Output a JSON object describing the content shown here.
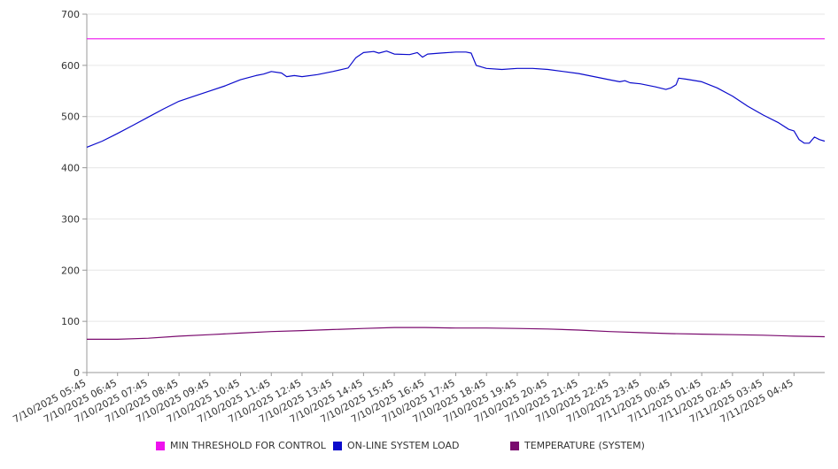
{
  "chart_data": {
    "type": "line",
    "title": "",
    "xlabel": "",
    "ylabel": "",
    "ylim": [
      0,
      700
    ],
    "yticks": [
      0,
      100,
      200,
      300,
      400,
      500,
      600,
      700
    ],
    "grid": true,
    "legend_position": "bottom",
    "x_tick_labels": [
      "7/10/2025 05:45",
      "7/10/2025 06:45",
      "7/10/2025 07:45",
      "7/10/2025 08:45",
      "7/10/2025 09:45",
      "7/10/2025 10:45",
      "7/10/2025 11:45",
      "7/10/2025 12:45",
      "7/10/2025 13:45",
      "7/10/2025 14:45",
      "7/10/2025 15:45",
      "7/10/2025 16:45",
      "7/10/2025 17:45",
      "7/10/2025 18:45",
      "7/10/2025 19:45",
      "7/10/2025 20:45",
      "7/10/2025 21:45",
      "7/10/2025 22:45",
      "7/10/2025 23:45",
      "7/11/2025 00:45",
      "7/11/2025 01:45",
      "7/11/2025 02:45",
      "7/11/2025 03:45",
      "7/11/2025 04:45"
    ],
    "x_range": [
      "7/10/2025 05:45",
      "7/11/2025 05:45"
    ],
    "series": [
      {
        "name": "MIN THRESHOLD FOR CONTROL",
        "color": "#ee11ee",
        "points": [
          [
            "7/10/2025 05:45",
            652
          ],
          [
            "7/11/2025 05:45",
            652
          ]
        ]
      },
      {
        "name": "ON-LINE SYSTEM LOAD",
        "color": "#0b0bcc",
        "points": [
          [
            "7/10/2025 05:45",
            440
          ],
          [
            "7/10/2025 06:15",
            452
          ],
          [
            "7/10/2025 06:45",
            467
          ],
          [
            "7/10/2025 07:15",
            483
          ],
          [
            "7/10/2025 07:45",
            499
          ],
          [
            "7/10/2025 08:15",
            515
          ],
          [
            "7/10/2025 08:45",
            530
          ],
          [
            "7/10/2025 09:15",
            540
          ],
          [
            "7/10/2025 09:45",
            550
          ],
          [
            "7/10/2025 10:15",
            560
          ],
          [
            "7/10/2025 10:45",
            572
          ],
          [
            "7/10/2025 11:15",
            580
          ],
          [
            "7/10/2025 11:30",
            583
          ],
          [
            "7/10/2025 11:45",
            588
          ],
          [
            "7/10/2025 12:05",
            585
          ],
          [
            "7/10/2025 12:15",
            578
          ],
          [
            "7/10/2025 12:30",
            580
          ],
          [
            "7/10/2025 12:45",
            578
          ],
          [
            "7/10/2025 13:15",
            582
          ],
          [
            "7/10/2025 13:45",
            588
          ],
          [
            "7/10/2025 14:15",
            595
          ],
          [
            "7/10/2025 14:30",
            615
          ],
          [
            "7/10/2025 14:45",
            625
          ],
          [
            "7/10/2025 15:05",
            627
          ],
          [
            "7/10/2025 15:15",
            624
          ],
          [
            "7/10/2025 15:30",
            628
          ],
          [
            "7/10/2025 15:45",
            622
          ],
          [
            "7/10/2025 16:15",
            621
          ],
          [
            "7/10/2025 16:30",
            625
          ],
          [
            "7/10/2025 16:40",
            616
          ],
          [
            "7/10/2025 16:50",
            622
          ],
          [
            "7/10/2025 17:15",
            624
          ],
          [
            "7/10/2025 17:45",
            626
          ],
          [
            "7/10/2025 18:05",
            626
          ],
          [
            "7/10/2025 18:15",
            624
          ],
          [
            "7/10/2025 18:25",
            600
          ],
          [
            "7/10/2025 18:45",
            594
          ],
          [
            "7/10/2025 19:15",
            592
          ],
          [
            "7/10/2025 19:45",
            594
          ],
          [
            "7/10/2025 20:15",
            594
          ],
          [
            "7/10/2025 20:45",
            592
          ],
          [
            "7/10/2025 21:15",
            588
          ],
          [
            "7/10/2025 21:45",
            584
          ],
          [
            "7/10/2025 22:15",
            578
          ],
          [
            "7/10/2025 22:45",
            572
          ],
          [
            "7/10/2025 23:05",
            568
          ],
          [
            "7/10/2025 23:15",
            570
          ],
          [
            "7/10/2025 23:25",
            566
          ],
          [
            "7/10/2025 23:45",
            564
          ],
          [
            "7/11/2025 00:15",
            558
          ],
          [
            "7/11/2025 00:35",
            553
          ],
          [
            "7/11/2025 00:45",
            556
          ],
          [
            "7/11/2025 00:55",
            562
          ],
          [
            "7/11/2025 01:00",
            575
          ],
          [
            "7/11/2025 01:15",
            573
          ],
          [
            "7/11/2025 01:45",
            568
          ],
          [
            "7/11/2025 02:15",
            556
          ],
          [
            "7/11/2025 02:45",
            540
          ],
          [
            "7/11/2025 03:15",
            520
          ],
          [
            "7/11/2025 03:45",
            503
          ],
          [
            "7/11/2025 04:15",
            488
          ],
          [
            "7/11/2025 04:35",
            475
          ],
          [
            "7/11/2025 04:45",
            472
          ],
          [
            "7/11/2025 04:55",
            455
          ],
          [
            "7/11/2025 05:05",
            448
          ],
          [
            "7/11/2025 05:15",
            448
          ],
          [
            "7/11/2025 05:25",
            460
          ],
          [
            "7/11/2025 05:35",
            455
          ],
          [
            "7/11/2025 05:45",
            452
          ]
        ]
      },
      {
        "name": "TEMPERATURE (SYSTEM)",
        "color": "#7a0a6e",
        "points": [
          [
            "7/10/2025 05:45",
            65
          ],
          [
            "7/10/2025 06:45",
            65
          ],
          [
            "7/10/2025 07:45",
            67
          ],
          [
            "7/10/2025 08:45",
            71
          ],
          [
            "7/10/2025 09:45",
            74
          ],
          [
            "7/10/2025 10:45",
            77
          ],
          [
            "7/10/2025 11:45",
            80
          ],
          [
            "7/10/2025 12:45",
            82
          ],
          [
            "7/10/2025 13:45",
            84
          ],
          [
            "7/10/2025 14:45",
            86
          ],
          [
            "7/10/2025 15:45",
            88
          ],
          [
            "7/10/2025 16:45",
            88
          ],
          [
            "7/10/2025 17:45",
            87
          ],
          [
            "7/10/2025 18:45",
            87
          ],
          [
            "7/10/2025 19:45",
            86
          ],
          [
            "7/10/2025 20:45",
            85
          ],
          [
            "7/10/2025 21:45",
            83
          ],
          [
            "7/10/2025 22:45",
            80
          ],
          [
            "7/10/2025 23:45",
            78
          ],
          [
            "7/11/2025 00:45",
            76
          ],
          [
            "7/11/2025 01:45",
            75
          ],
          [
            "7/11/2025 02:45",
            74
          ],
          [
            "7/11/2025 03:45",
            73
          ],
          [
            "7/11/2025 04:45",
            71
          ],
          [
            "7/11/2025 05:45",
            70
          ]
        ]
      }
    ]
  }
}
